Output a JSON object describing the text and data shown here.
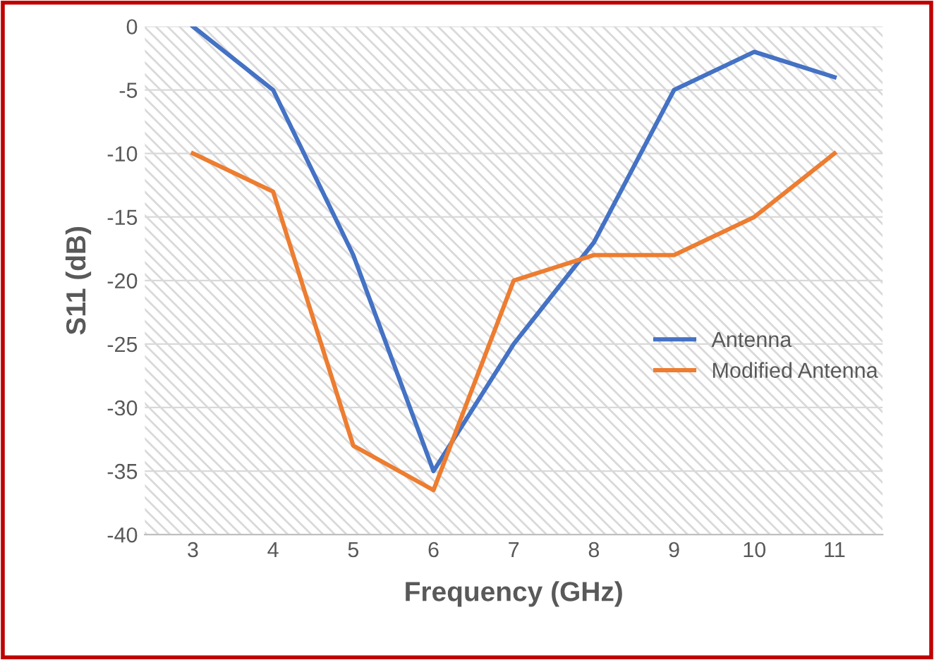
{
  "chart_data": {
    "type": "line",
    "xlabel": "Frequency (GHz)",
    "ylabel": "S11 (dB)",
    "categories": [
      "3",
      "4",
      "5",
      "6",
      "7",
      "8",
      "9",
      "10",
      "11"
    ],
    "series": [
      {
        "name": "Antenna",
        "color": "#4472c4",
        "values": [
          0,
          -5,
          -18,
          -35,
          -25,
          -17,
          -5,
          -2,
          -4
        ]
      },
      {
        "name": "Modified Antenna",
        "color": "#ed7d31",
        "values": [
          -10,
          -13,
          -33,
          -36.5,
          -20,
          -18,
          -18,
          -15,
          -10
        ]
      }
    ],
    "ylim": [
      -40,
      0
    ],
    "yticks": [
      -40,
      -35,
      -30,
      -25,
      -20,
      -15,
      -10,
      -5,
      0
    ],
    "grid": "y",
    "legend": "right",
    "marker": "none",
    "line_style": "solid"
  }
}
